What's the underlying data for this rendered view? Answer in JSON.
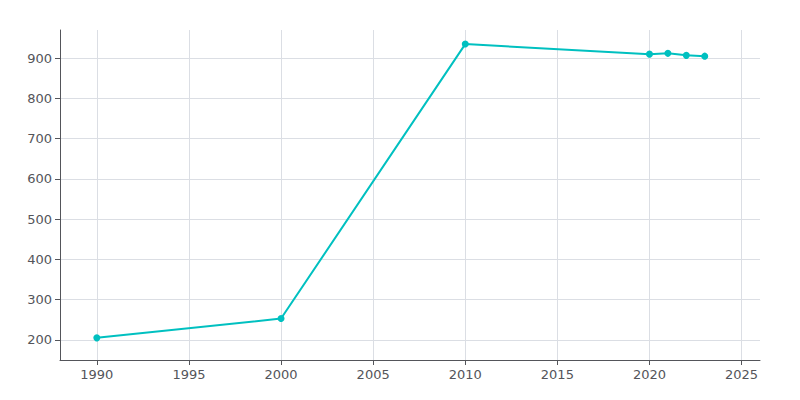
{
  "chart_data": {
    "type": "line",
    "x": [
      1990,
      2000,
      2010,
      2020,
      2021,
      2022,
      2023
    ],
    "values": [
      205,
      253,
      935,
      910,
      912,
      907,
      905
    ],
    "color": "#00C0C0",
    "marker": "circle",
    "xlim": [
      1988,
      2026
    ],
    "ylim": [
      150,
      970
    ],
    "xticks": [
      1990,
      1995,
      2000,
      2005,
      2010,
      2015,
      2020,
      2025
    ],
    "yticks": [
      200,
      300,
      400,
      500,
      600,
      700,
      800,
      900
    ],
    "grid": true
  }
}
